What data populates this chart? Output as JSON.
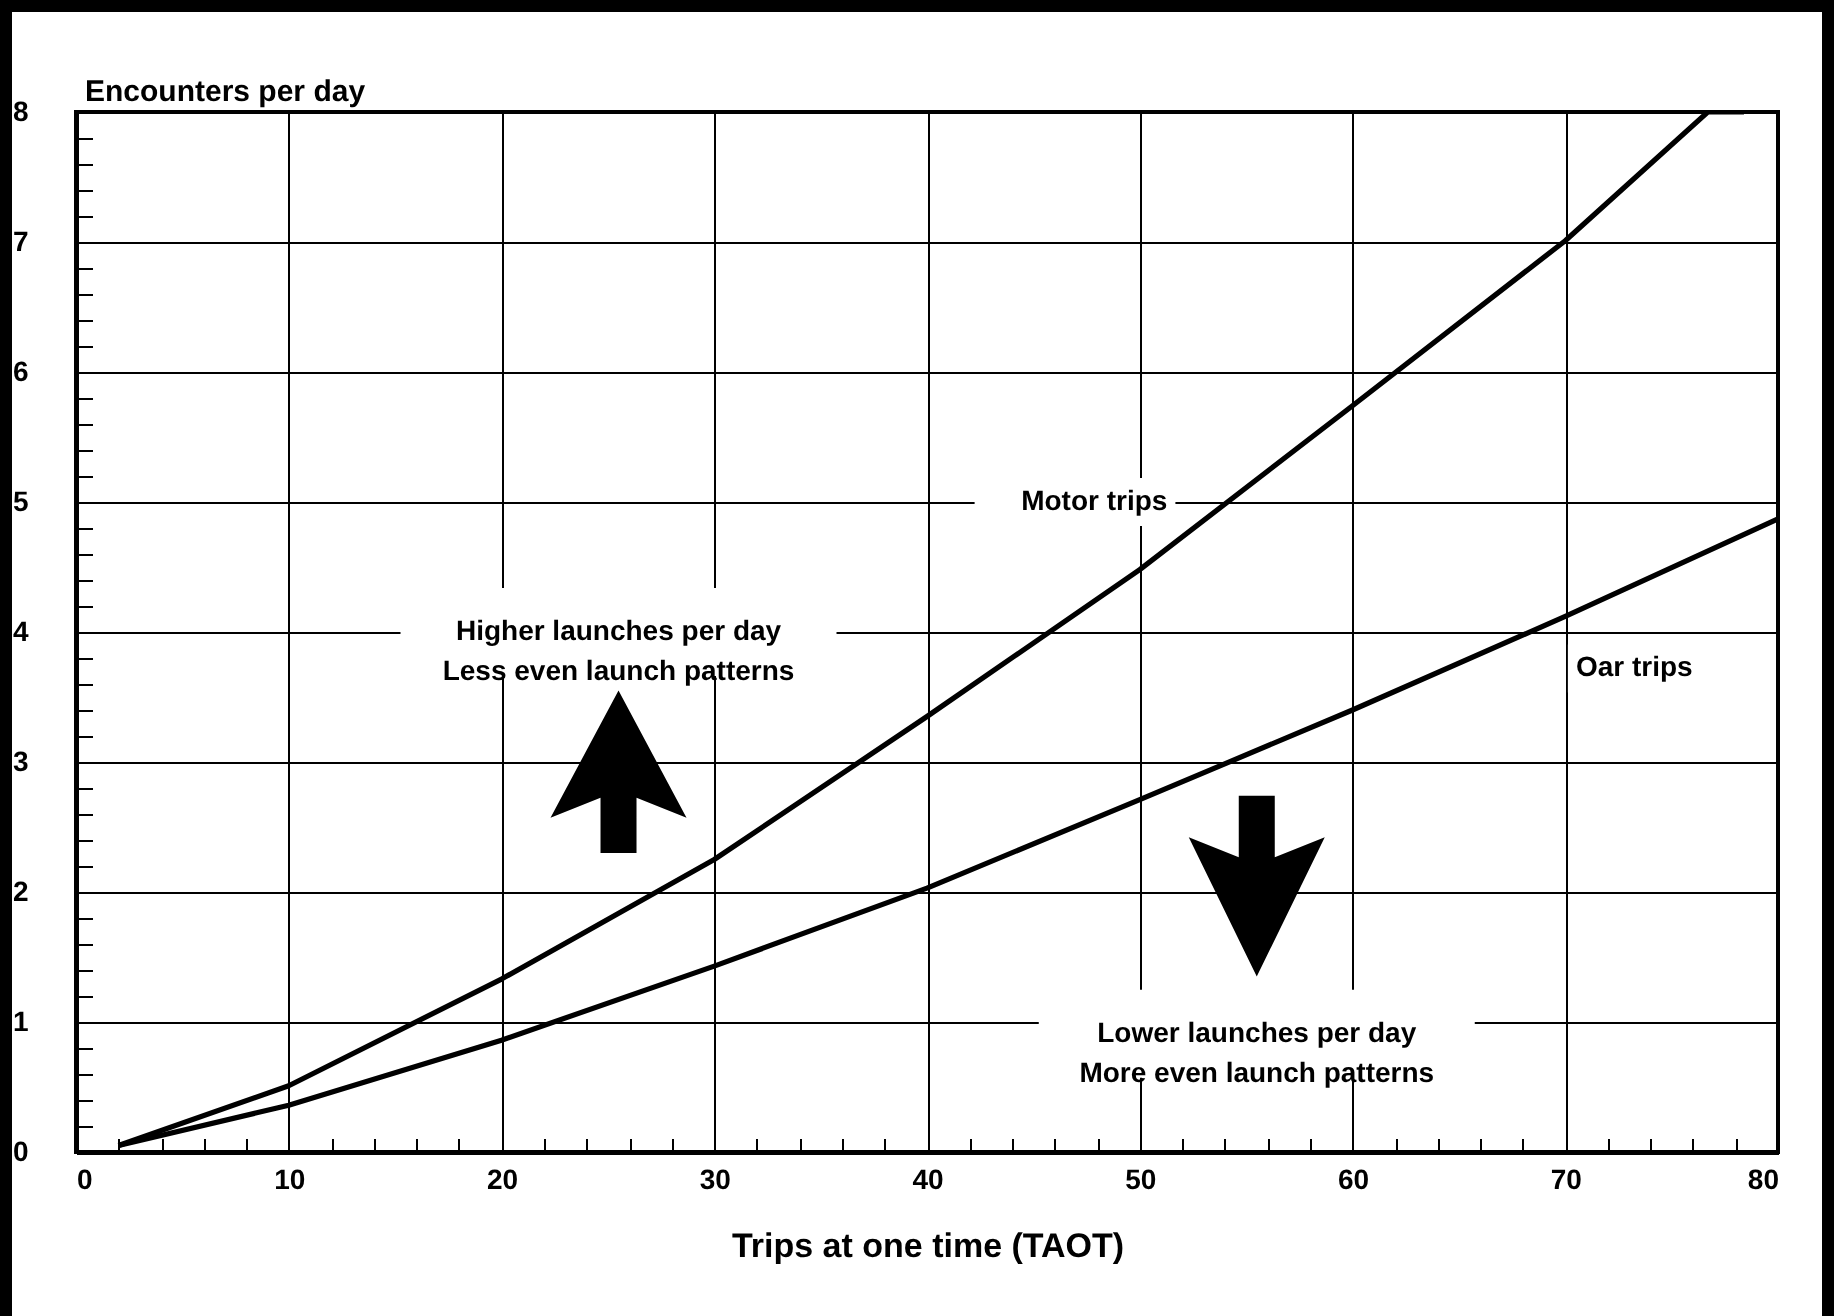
{
  "chart_data": {
    "type": "line",
    "xlabel": "Trips at one time (TAOT)",
    "ylabel": "Encounters per day",
    "xlim": [
      0,
      80
    ],
    "ylim": [
      0,
      8
    ],
    "xticks": [
      0,
      {
        "value": 2,
        "label": null
      },
      {
        "value": 4,
        "label": null
      },
      {
        "value": 6,
        "label": null
      },
      {
        "value": 8,
        "label": null
      },
      10,
      {
        "value": 12,
        "label": null
      },
      {
        "value": 14,
        "label": null
      },
      {
        "value": 16,
        "label": null
      },
      {
        "value": 18,
        "label": null
      },
      20,
      {
        "value": 22,
        "label": null
      },
      {
        "value": 24,
        "label": null
      },
      {
        "value": 26,
        "label": null
      },
      {
        "value": 28,
        "label": null
      },
      30,
      {
        "value": 32,
        "label": null
      },
      {
        "value": 34,
        "label": null
      },
      {
        "value": 36,
        "label": null
      },
      {
        "value": 38,
        "label": null
      },
      40,
      {
        "value": 42,
        "label": null
      },
      {
        "value": 44,
        "label": null
      },
      {
        "value": 46,
        "label": null
      },
      {
        "value": 48,
        "label": null
      },
      50,
      {
        "value": 52,
        "label": null
      },
      {
        "value": 54,
        "label": null
      },
      {
        "value": 56,
        "label": null
      },
      {
        "value": 58,
        "label": null
      },
      60,
      {
        "value": 62,
        "label": null
      },
      {
        "value": 64,
        "label": null
      },
      {
        "value": 66,
        "label": null
      },
      {
        "value": 68,
        "label": null
      },
      70,
      {
        "value": 72,
        "label": null
      },
      {
        "value": 74,
        "label": null
      },
      {
        "value": 76,
        "label": null
      },
      {
        "value": 78,
        "label": null
      },
      80
    ],
    "yticks": [
      0,
      {
        "value": 0.2,
        "label": null
      },
      {
        "value": 0.4,
        "label": null
      },
      {
        "value": 0.6,
        "label": null
      },
      {
        "value": 0.8,
        "label": null
      },
      1,
      {
        "value": 1.2,
        "label": null
      },
      {
        "value": 1.4,
        "label": null
      },
      {
        "value": 1.6,
        "label": null
      },
      {
        "value": 1.8,
        "label": null
      },
      2,
      {
        "value": 2.2,
        "label": null
      },
      {
        "value": 2.4,
        "label": null
      },
      {
        "value": 2.6,
        "label": null
      },
      {
        "value": 2.8,
        "label": null
      },
      3,
      {
        "value": 3.2,
        "label": null
      },
      {
        "value": 3.4,
        "label": null
      },
      {
        "value": 3.6,
        "label": null
      },
      {
        "value": 3.8,
        "label": null
      },
      4,
      {
        "value": 4.2,
        "label": null
      },
      {
        "value": 4.4,
        "label": null
      },
      {
        "value": 4.6,
        "label": null
      },
      {
        "value": 4.8,
        "label": null
      },
      5,
      {
        "value": 5.2,
        "label": null
      },
      {
        "value": 5.4,
        "label": null
      },
      {
        "value": 5.6,
        "label": null
      },
      {
        "value": 5.8,
        "label": null
      },
      6,
      {
        "value": 6.2,
        "label": null
      },
      {
        "value": 6.4,
        "label": null
      },
      {
        "value": 6.6,
        "label": null
      },
      {
        "value": 6.8,
        "label": null
      },
      7,
      {
        "value": 7.2,
        "label": null
      },
      {
        "value": 7.4,
        "label": null
      },
      {
        "value": 7.6,
        "label": null
      },
      {
        "value": 7.8,
        "label": null
      },
      8
    ],
    "grid": true,
    "legend": false,
    "marker": "none",
    "line_style": "solid",
    "series": [
      {
        "name": "Motor trips",
        "color": "#000000",
        "x": [
          2,
          10,
          20,
          30,
          40,
          50,
          60,
          70,
          76.7,
          78.4
        ],
        "values": [
          0.05,
          0.51,
          1.33,
          2.25,
          3.35,
          4.48,
          5.74,
          7.01,
          8,
          8
        ]
      },
      {
        "name": "Oar trips",
        "color": "#000000",
        "x": [
          2,
          10,
          20,
          30,
          40,
          50,
          60,
          70,
          80
        ],
        "values": [
          0.05,
          0.36,
          0.86,
          1.43,
          2.03,
          2.71,
          3.4,
          4.12,
          4.87
        ]
      }
    ],
    "annotations": [
      "Higher launches per day\nLess even launch patterns",
      "Lower launches per day\nMore even launch patterns"
    ]
  }
}
